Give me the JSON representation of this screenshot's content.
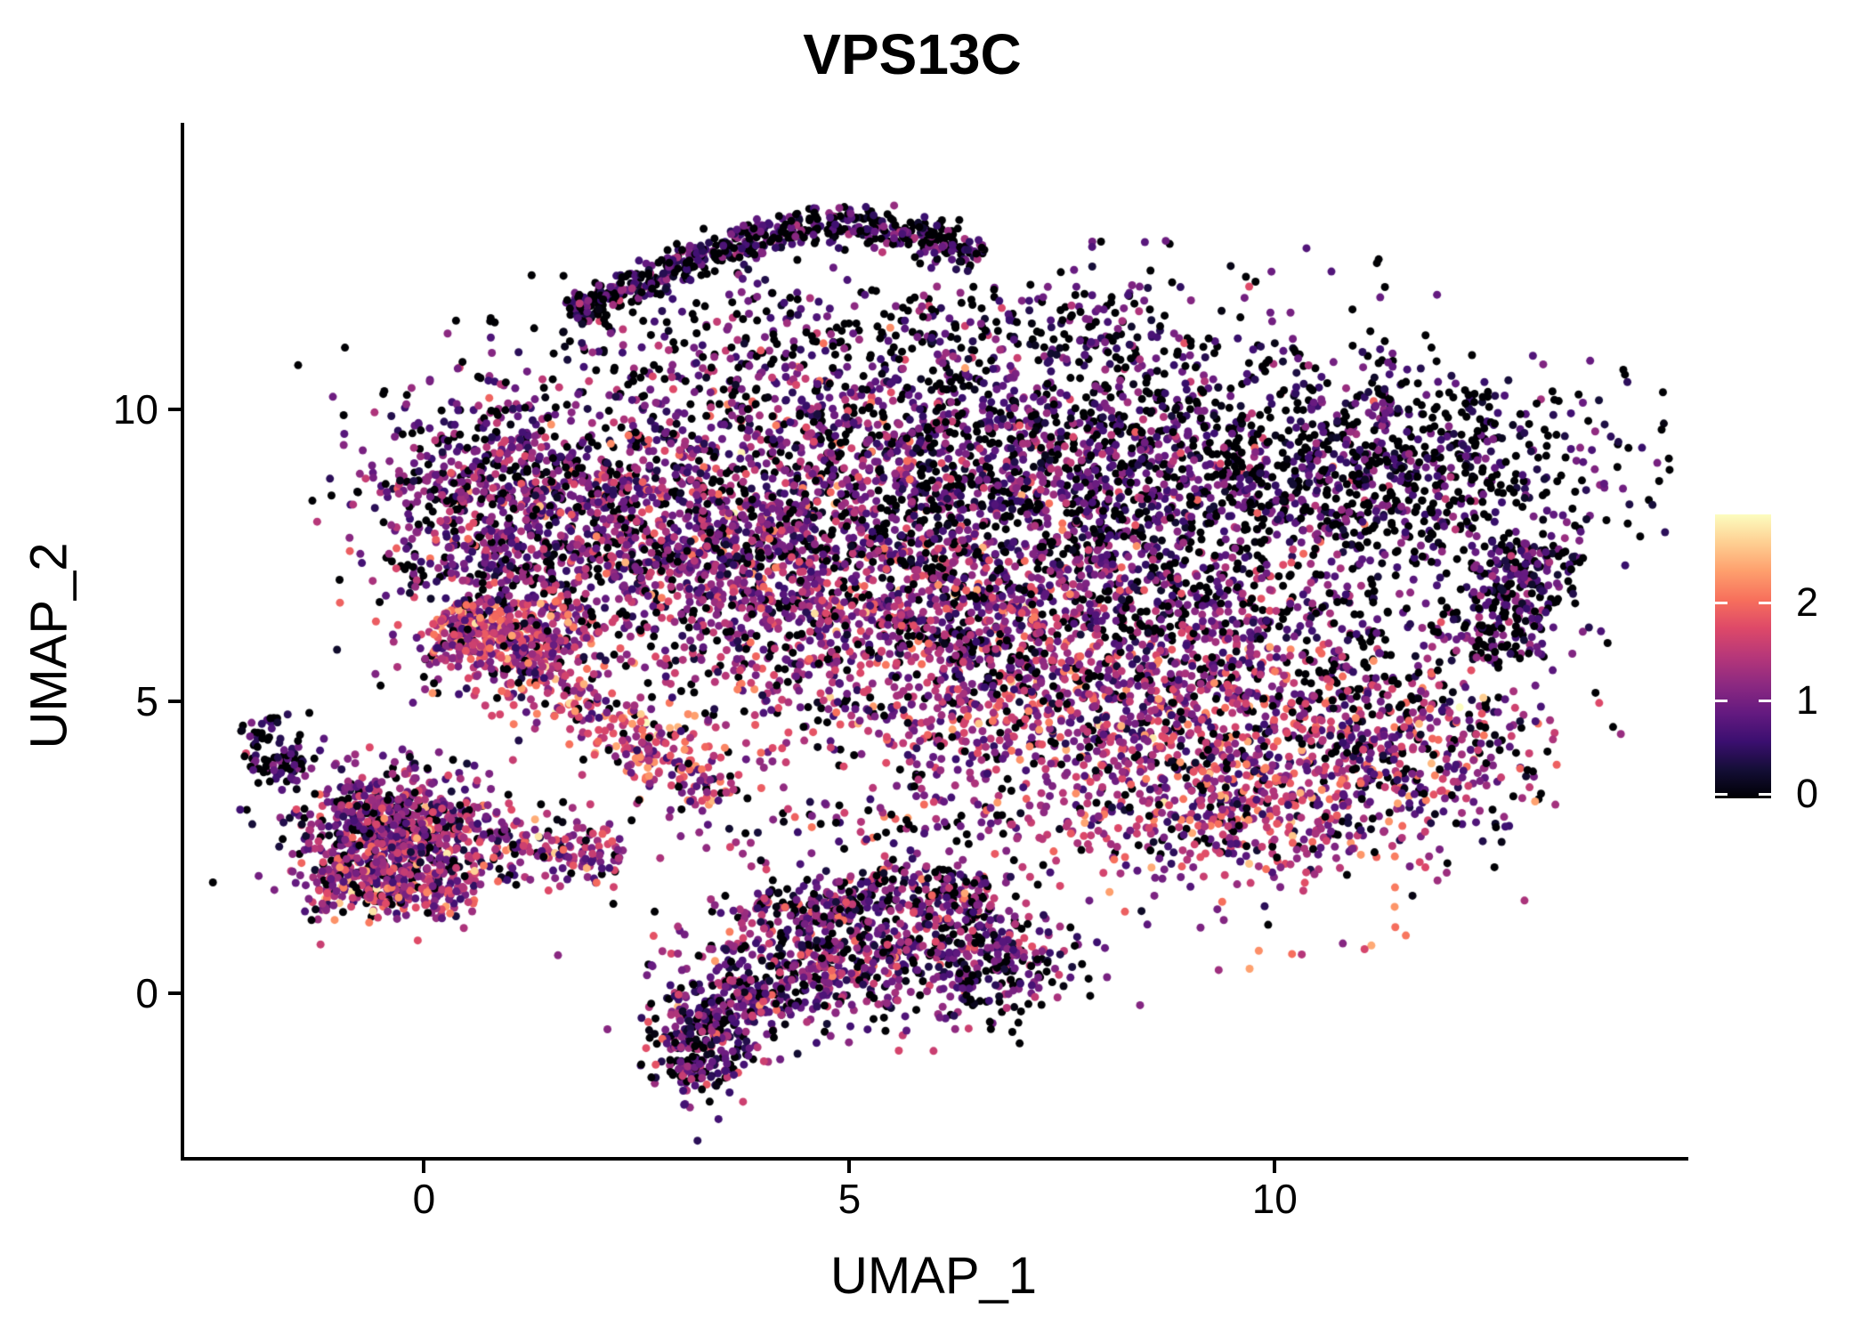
{
  "title": "VPS13C",
  "axes": {
    "x_label": "UMAP_1",
    "y_label": "UMAP_2"
  },
  "chart_data": {
    "type": "scatter",
    "title": "VPS13C",
    "xlabel": "UMAP_1",
    "ylabel": "UMAP_2",
    "xlim": [
      -2.84,
      14.82
    ],
    "ylim": [
      -2.84,
      14.88
    ],
    "x_ticks": [
      0,
      5,
      10
    ],
    "y_ticks": [
      0,
      5,
      10
    ],
    "grid": false,
    "legend_position": "right",
    "colorbar": {
      "ticks": [
        0,
        1,
        2
      ],
      "scale_max": 2.9,
      "colormap_name": "magma"
    },
    "colormap": [
      "#000004",
      "#140E36",
      "#3B0F70",
      "#641A80",
      "#8C2981",
      "#B73779",
      "#DE4968",
      "#F7705C",
      "#FE9F6D",
      "#FECF92",
      "#FCFDBF"
    ],
    "point_radius": 4.5,
    "seed": 20240617,
    "n_points_total": 13348,
    "clusters": [
      {
        "kind": "strip",
        "x1": 1.74,
        "y1": 11.58,
        "x2": 2.97,
        "y2": 12.45,
        "w": 0.16,
        "n": 180,
        "p0": 0.45,
        "mu": 0.75,
        "sd": 0.35
      },
      {
        "kind": "strip",
        "x1": 2.97,
        "y1": 12.45,
        "x2": 4.49,
        "y2": 13.18,
        "w": 0.16,
        "n": 200,
        "p0": 0.45,
        "mu": 0.75,
        "sd": 0.35
      },
      {
        "kind": "strip",
        "x1": 4.49,
        "y1": 13.18,
        "x2": 5.6,
        "y2": 13.05,
        "w": 0.16,
        "n": 120,
        "p0": 0.45,
        "mu": 0.75,
        "sd": 0.35
      },
      {
        "kind": "strip",
        "x1": 5.6,
        "y1": 13.05,
        "x2": 6.56,
        "y2": 12.65,
        "w": 0.16,
        "n": 120,
        "p0": 0.45,
        "mu": 0.75,
        "sd": 0.35
      },
      {
        "kind": "gauss",
        "cx": 4.3,
        "cy": 11.35,
        "sx": 1.8,
        "sy": 0.55,
        "n": 170,
        "p0": 0.5,
        "mu": 0.7,
        "sd": 0.4
      },
      {
        "kind": "gauss",
        "cx": 7.5,
        "cy": 11.3,
        "sx": 1.3,
        "sy": 0.6,
        "n": 120,
        "p0": 0.55,
        "mu": 0.65,
        "sd": 0.35
      },
      {
        "kind": "gauss",
        "cx": 7.9,
        "cy": 12.6,
        "sx": 0.35,
        "sy": 0.35,
        "n": 8,
        "p0": 0.5,
        "mu": 0.7,
        "sd": 0.3
      },
      {
        "kind": "gauss",
        "cx": 1.0,
        "cy": 8.4,
        "sx": 0.85,
        "sy": 1.05,
        "n": 850,
        "p0": 0.25,
        "mu": 1.0,
        "sd": 0.45
      },
      {
        "kind": "strip",
        "x1": 0.3,
        "y1": 6.6,
        "x2": 1.6,
        "y2": 5.6,
        "w": 0.45,
        "n": 500,
        "p0": 0.08,
        "mu": 1.45,
        "sd": 0.5
      },
      {
        "kind": "strip",
        "x1": 1.5,
        "y1": 5.4,
        "x2": 3.5,
        "y2": 3.3,
        "w": 0.32,
        "n": 260,
        "p0": 0.08,
        "mu": 1.5,
        "sd": 0.55
      },
      {
        "kind": "gauss",
        "cx": 3.2,
        "cy": 7.6,
        "sx": 0.9,
        "sy": 1.0,
        "n": 500,
        "p0": 0.2,
        "mu": 1.15,
        "sd": 0.5
      },
      {
        "kind": "gauss",
        "cx": 4.6,
        "cy": 9.0,
        "sx": 1.7,
        "sy": 1.35,
        "n": 1300,
        "p0": 0.3,
        "mu": 0.95,
        "sd": 0.45
      },
      {
        "kind": "gauss",
        "cx": 4.9,
        "cy": 6.6,
        "sx": 1.6,
        "sy": 1.0,
        "n": 850,
        "p0": 0.15,
        "mu": 1.25,
        "sd": 0.5
      },
      {
        "kind": "gauss",
        "cx": 8.0,
        "cy": 8.7,
        "sx": 1.8,
        "sy": 1.35,
        "n": 1500,
        "p0": 0.38,
        "mu": 0.85,
        "sd": 0.42
      },
      {
        "kind": "gauss",
        "cx": 8.3,
        "cy": 6.2,
        "sx": 1.6,
        "sy": 1.0,
        "n": 750,
        "p0": 0.25,
        "mu": 1.05,
        "sd": 0.5
      },
      {
        "kind": "gauss",
        "cx": 11.3,
        "cy": 9.0,
        "sx": 1.4,
        "sy": 0.9,
        "n": 800,
        "p0": 0.52,
        "mu": 0.7,
        "sd": 0.35
      },
      {
        "kind": "strip",
        "x1": 12.55,
        "y1": 5.7,
        "x2": 13.05,
        "y2": 7.7,
        "w": 0.33,
        "n": 280,
        "p0": 0.45,
        "mu": 0.8,
        "sd": 0.35
      },
      {
        "kind": "gauss",
        "cx": 11.2,
        "cy": 5.9,
        "sx": 0.9,
        "sy": 0.9,
        "n": 130,
        "p0": 0.6,
        "mu": 0.6,
        "sd": 0.3
      },
      {
        "kind": "gauss",
        "cx": 9.6,
        "cy": 3.7,
        "sx": 1.25,
        "sy": 1.05,
        "n": 950,
        "p0": 0.13,
        "mu": 1.35,
        "sd": 0.55
      },
      {
        "kind": "gauss",
        "cx": 11.6,
        "cy": 4.3,
        "sx": 0.8,
        "sy": 0.8,
        "n": 300,
        "p0": 0.25,
        "mu": 1.1,
        "sd": 0.5
      },
      {
        "kind": "gauss",
        "cx": 6.7,
        "cy": 5.0,
        "sx": 1.4,
        "sy": 0.75,
        "n": 500,
        "p0": 0.15,
        "mu": 1.3,
        "sd": 0.5
      },
      {
        "kind": "gauss",
        "cx": 6.2,
        "cy": 2.8,
        "sx": 2.2,
        "sy": 0.6,
        "n": 200,
        "p0": 0.3,
        "mu": 1.1,
        "sd": 0.5
      },
      {
        "kind": "strip",
        "x1": 5.1,
        "y1": 1.9,
        "x2": 6.7,
        "y2": 1.6,
        "w": 0.25,
        "n": 160,
        "p0": 0.25,
        "mu": 1.0,
        "sd": 0.5
      },
      {
        "kind": "gauss",
        "cx": -0.35,
        "cy": 2.7,
        "sx": 0.62,
        "sy": 0.6,
        "n": 800,
        "p0": 0.13,
        "mu": 1.15,
        "sd": 0.5
      },
      {
        "kind": "strip",
        "x1": -1.3,
        "y1": 1.85,
        "x2": 0.6,
        "y2": 1.75,
        "w": 0.28,
        "n": 220,
        "p0": 0.08,
        "mu": 1.5,
        "sd": 0.5
      },
      {
        "kind": "strip",
        "x1": -1.55,
        "y1": 3.6,
        "x2": -2.0,
        "y2": 4.65,
        "w": 0.22,
        "n": 90,
        "p0": 0.45,
        "mu": 0.75,
        "sd": 0.35
      },
      {
        "kind": "strip",
        "x1": 0.8,
        "y1": 2.5,
        "x2": 2.3,
        "y2": 2.3,
        "w": 0.3,
        "n": 140,
        "p0": 0.12,
        "mu": 1.35,
        "sd": 0.55
      },
      {
        "kind": "gauss",
        "cx": 3.3,
        "cy": -0.75,
        "sx": 0.33,
        "sy": 0.5,
        "n": 270,
        "p0": 0.22,
        "mu": 0.9,
        "sd": 0.42
      },
      {
        "kind": "strip",
        "x1": 3.2,
        "y1": -1.1,
        "x2": 3.05,
        "y2": -1.55,
        "w": 0.15,
        "n": 40,
        "p0": 0.3,
        "mu": 0.8,
        "sd": 0.4
      },
      {
        "kind": "strip",
        "x1": 3.45,
        "y1": -0.45,
        "x2": 4.1,
        "y2": 0.2,
        "w": 0.2,
        "n": 60,
        "p0": 0.25,
        "mu": 0.9,
        "sd": 0.45
      },
      {
        "kind": "gauss",
        "cx": 4.55,
        "cy": 0.55,
        "sx": 0.75,
        "sy": 0.55,
        "n": 420,
        "p0": 0.18,
        "mu": 1.0,
        "sd": 0.47
      },
      {
        "kind": "gauss",
        "cx": 5.9,
        "cy": 0.8,
        "sx": 0.8,
        "sy": 0.5,
        "n": 280,
        "p0": 0.28,
        "mu": 0.9,
        "sd": 0.45
      },
      {
        "kind": "gauss",
        "cx": 6.7,
        "cy": 0.4,
        "sx": 0.45,
        "sy": 0.5,
        "n": 160,
        "p0": 0.3,
        "mu": 0.9,
        "sd": 0.45
      },
      {
        "kind": "strip",
        "x1": 3.9,
        "y1": 1.35,
        "x2": 5.1,
        "y2": 1.5,
        "w": 0.25,
        "n": 120,
        "p0": 0.2,
        "mu": 1.05,
        "sd": 0.5
      }
    ]
  }
}
